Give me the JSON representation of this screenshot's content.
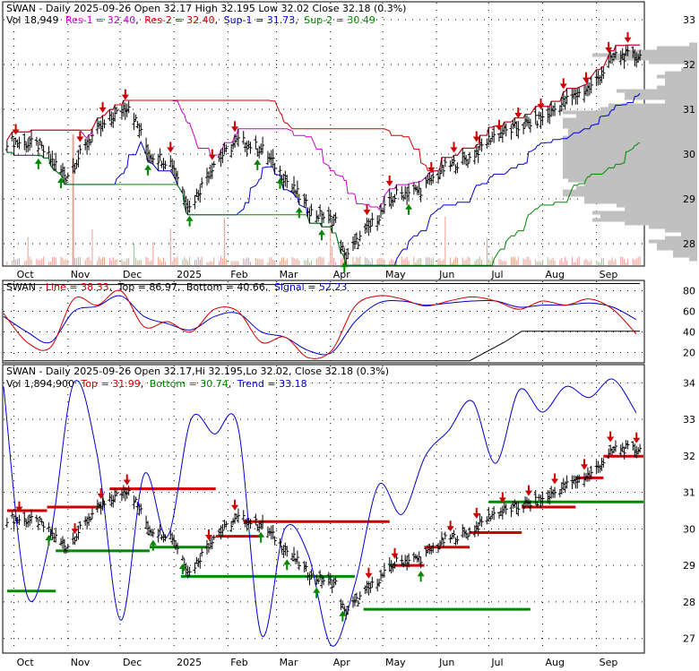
{
  "panel1": {
    "title": "SWAN - Daily 2025-09-26 Open 32.17  High 32.195  Low 32.02  Close 32.18 (0.3%)",
    "line2_prefix": "Vol 18,949",
    "legend": [
      {
        "text": "Res-1 = 32.40",
        "color": "#cc00cc"
      },
      {
        "text": "Res-2 = 32.40",
        "color": "#cc0000"
      },
      {
        "text": "Sup-1 = 31.73",
        "color": "#0000cc"
      },
      {
        "text": "Sup-2 = 30.49",
        "color": "#008800"
      }
    ]
  },
  "panel2": {
    "title_prefix": "SWAN - ",
    "legend": [
      {
        "text": "Line = 38.33",
        "color": "#cc0000"
      },
      {
        "text": "Top = 86.97",
        "color": "#000000"
      },
      {
        "text": "Bottom = 40.66",
        "color": "#000000"
      },
      {
        "text": "Signal = 52.23",
        "color": "#0000cc"
      }
    ]
  },
  "panel3": {
    "title": "SWAN - Daily 2025-09-26 Open 32.17,Hi 32.195,Lo 32.02, Close 32.18 (0.3%)",
    "line2_prefix": "Vol 1,894,900",
    "legend": [
      {
        "text": "Top = 31.99",
        "color": "#cc0000"
      },
      {
        "text": "Bottom = 30.74",
        "color": "#008800"
      },
      {
        "text": "Trend = 33.18",
        "color": "#0000cc"
      }
    ]
  },
  "x_labels": [
    "Oct",
    "Nov",
    "Dec",
    "2025",
    "Feb",
    "Mar",
    "Apr",
    "May",
    "Jun",
    "Jul",
    "Aug",
    "Sep"
  ],
  "colors": {
    "bar": "#000000",
    "res1": "#cc00cc",
    "res2": "#cc0000",
    "sup1": "#0000cc",
    "sup2": "#008800",
    "volume": "#e8a090",
    "profile": "#c0c0c0",
    "up_arrow": "#008800",
    "down_arrow": "#cc0000"
  },
  "chart_data": [
    {
      "type": "line",
      "name": "price",
      "y_ticks": [
        28,
        29,
        30,
        31,
        32,
        33
      ],
      "ylim": [
        27.5,
        33.4
      ],
      "closes": [
        {
          "x": "2024-09-27",
          "y": 30.3
        },
        {
          "x": "2024-10-15",
          "y": 30.2
        },
        {
          "x": "2024-10-31",
          "y": 29.5
        },
        {
          "x": "2024-11-15",
          "y": 30.4
        },
        {
          "x": "2024-11-29",
          "y": 30.9
        },
        {
          "x": "2024-12-06",
          "y": 31.1
        },
        {
          "x": "2024-12-18",
          "y": 30.0
        },
        {
          "x": "2024-12-31",
          "y": 29.8
        },
        {
          "x": "2025-01-10",
          "y": 28.8
        },
        {
          "x": "2025-01-24",
          "y": 29.8
        },
        {
          "x": "2025-02-07",
          "y": 30.3
        },
        {
          "x": "2025-02-21",
          "y": 30.1
        },
        {
          "x": "2025-03-07",
          "y": 29.4
        },
        {
          "x": "2025-03-21",
          "y": 28.7
        },
        {
          "x": "2025-04-04",
          "y": 28.5
        },
        {
          "x": "2025-04-09",
          "y": 27.7
        },
        {
          "x": "2025-04-22",
          "y": 28.3
        },
        {
          "x": "2025-05-09",
          "y": 29.1
        },
        {
          "x": "2025-05-23",
          "y": 29.2
        },
        {
          "x": "2025-06-06",
          "y": 29.7
        },
        {
          "x": "2025-06-20",
          "y": 29.9
        },
        {
          "x": "2025-07-03",
          "y": 30.4
        },
        {
          "x": "2025-07-18",
          "y": 30.6
        },
        {
          "x": "2025-08-01",
          "y": 30.8
        },
        {
          "x": "2025-08-15",
          "y": 31.2
        },
        {
          "x": "2025-08-29",
          "y": 31.5
        },
        {
          "x": "2025-09-12",
          "y": 32.2
        },
        {
          "x": "2025-09-26",
          "y": 32.18
        }
      ],
      "levels": {
        "res1": 32.4,
        "res2": 32.4,
        "sup1": 31.73,
        "sup2": 30.49
      }
    },
    {
      "type": "line",
      "name": "oscillator",
      "y_ticks": [
        20,
        40,
        60,
        80
      ],
      "ylim": [
        10,
        90
      ],
      "line": [
        58,
        30,
        25,
        72,
        66,
        80,
        45,
        50,
        40,
        62,
        60,
        30,
        35,
        15,
        22,
        65,
        75,
        72,
        65,
        70,
        74,
        70,
        62,
        70,
        66,
        72,
        62,
        38
      ],
      "signal": [
        55,
        40,
        30,
        60,
        65,
        75,
        55,
        48,
        42,
        55,
        58,
        40,
        35,
        22,
        20,
        50,
        68,
        70,
        66,
        68,
        70,
        70,
        64,
        66,
        66,
        68,
        64,
        52
      ],
      "top": 86.97,
      "bottom": 40.66
    },
    {
      "type": "line",
      "name": "trend",
      "y_ticks": [
        27,
        28,
        29,
        30,
        31,
        32,
        33,
        34
      ],
      "ylim": [
        26.6,
        34.5
      ],
      "trend": [
        33.9,
        28.2,
        29.8,
        34.0,
        32.0,
        27.5,
        31.5,
        29.8,
        33.0,
        32.6,
        32.8,
        27.1,
        30.0,
        29.3,
        26.8,
        28.5,
        31.2,
        30.4,
        32.0,
        32.7,
        33.5,
        31.8,
        33.8,
        33.2,
        33.9,
        33.6,
        34.1,
        33.18
      ]
    }
  ]
}
